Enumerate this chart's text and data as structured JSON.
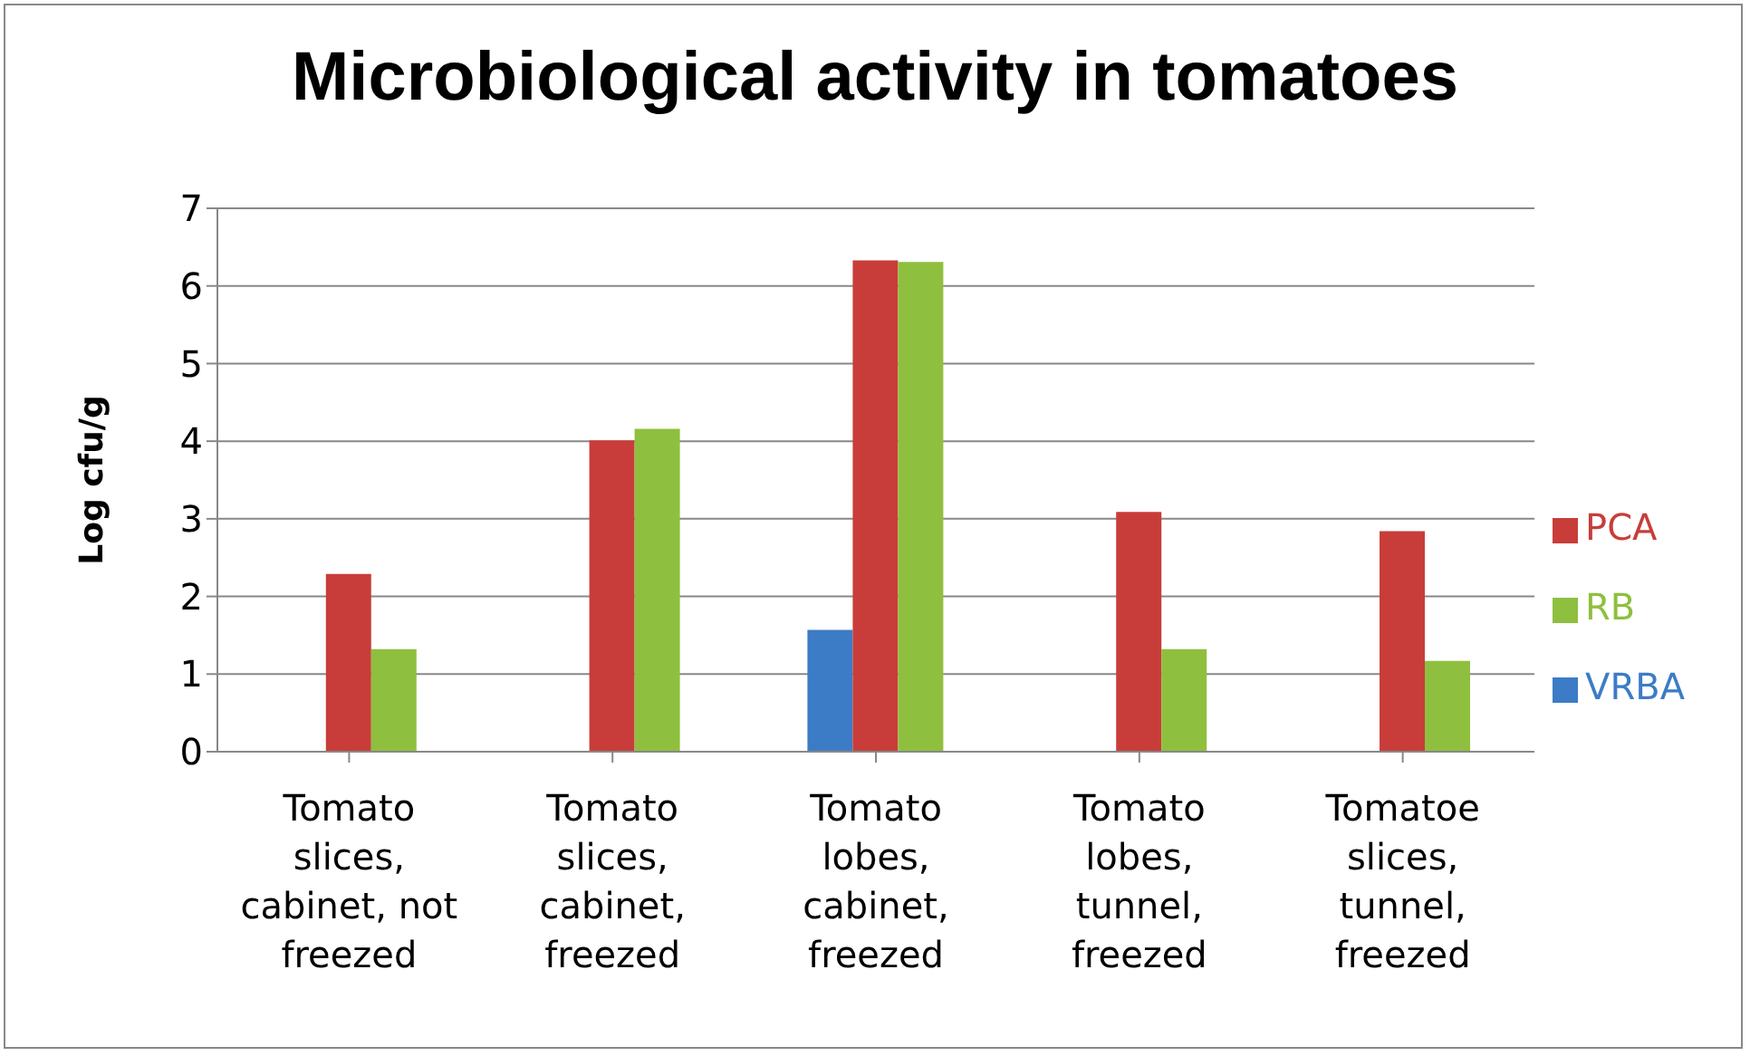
{
  "chart_data": {
    "type": "bar",
    "title": "Microbiological activity in tomatoes",
    "ylabel": "Log cfu/g",
    "categories": [
      "Tomato slices, cabinet, not freezed",
      "Tomato slices, cabinet, freezed",
      "Tomato lobes, cabinet, freezed",
      "Tomato lobes, tunnel, freezed",
      "Tomatoe slices, tunnel, freezed"
    ],
    "series": [
      {
        "name": "VRBA",
        "color": "#3c7cc6",
        "values": [
          null,
          null,
          1.57,
          null,
          null
        ]
      },
      {
        "name": "PCA",
        "color": "#c83d39",
        "values": [
          2.29,
          4.01,
          6.33,
          3.09,
          2.84
        ]
      },
      {
        "name": "RB",
        "color": "#8fbf3f",
        "values": [
          1.32,
          4.16,
          6.31,
          1.32,
          1.17
        ]
      }
    ],
    "ylim": [
      0,
      7
    ],
    "yticks": [
      0,
      1,
      2,
      3,
      4,
      5,
      6,
      7
    ],
    "grid": "y",
    "legend": "right"
  }
}
